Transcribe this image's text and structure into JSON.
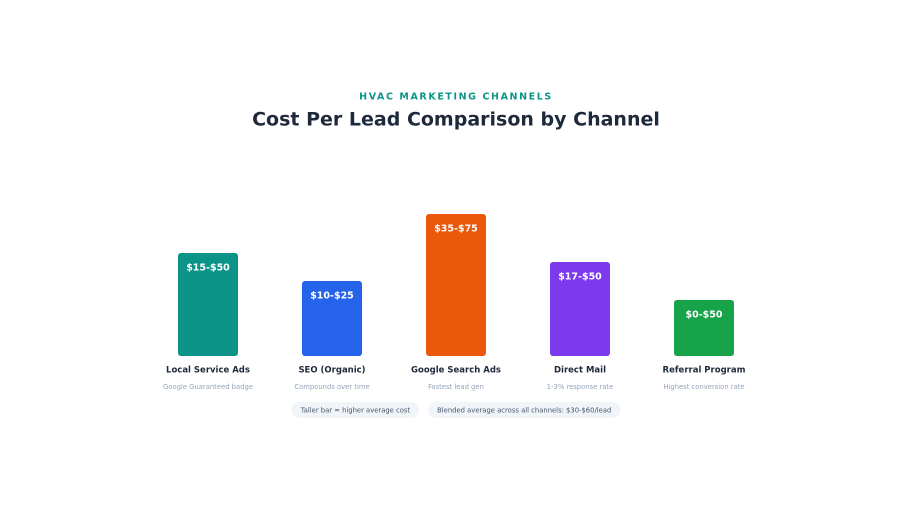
{
  "chart_data": {
    "type": "bar",
    "subtitle": "HVAC MARKETING CHANNELS",
    "title": "Cost Per Lead Comparison by Channel",
    "categories": [
      "Local Service Ads",
      "SEO (Organic)",
      "Google Search Ads",
      "Direct Mail",
      "Referral Program"
    ],
    "descriptions": [
      "Google Guaranteed badge",
      "Compounds over time",
      "Fastest lead gen",
      "1-3% response rate",
      "Highest conversion rate"
    ],
    "values": [
      103,
      75,
      142,
      94,
      56
    ],
    "value_labels": [
      "$15-$50",
      "$10-$25",
      "$35-$75",
      "$17-$50",
      "$0-$50"
    ],
    "colors": [
      "#0d9488",
      "#2563eb",
      "#ea580c",
      "#7c3aed",
      "#16a34a"
    ],
    "notes": [
      "Taller bar = higher average cost",
      "Blended average across all channels: $30-$60/lead"
    ]
  }
}
